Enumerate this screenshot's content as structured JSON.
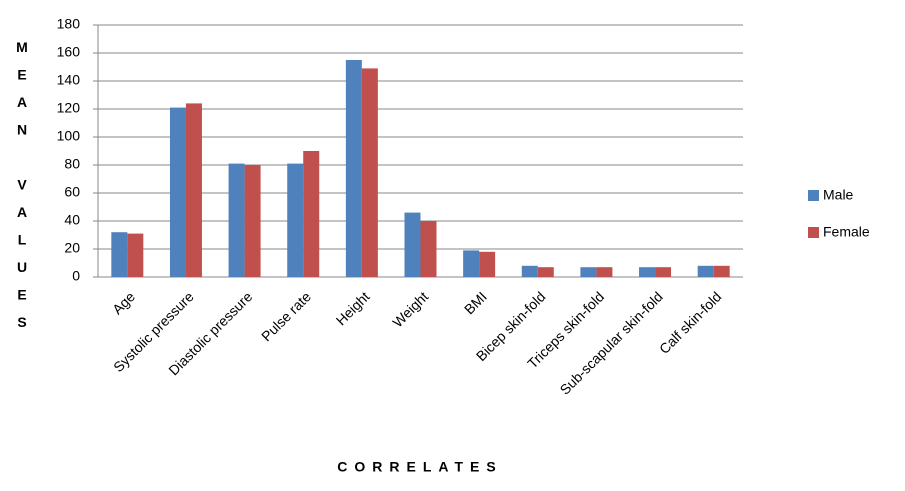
{
  "chart_data": {
    "type": "bar",
    "y_axis_label": "MEAN VALUES",
    "x_axis_label": "CORRELATES",
    "categories": [
      "Age",
      "Systolic pressure",
      "Diastolic pressure",
      "Pulse rate",
      "Height",
      "Weight",
      "BMI",
      "Bicep skin-fold",
      "Triceps skin-fold",
      "Sub-scapular skin-fold",
      "Calf skin-fold"
    ],
    "series": [
      {
        "name": "Male",
        "color": "#4f81bd",
        "values": [
          32,
          121,
          81,
          81,
          155,
          46,
          19,
          8,
          7,
          7,
          8
        ]
      },
      {
        "name": "Female",
        "color": "#c0504d",
        "values": [
          31,
          124,
          80,
          90,
          149,
          40,
          18,
          7,
          7,
          7,
          8
        ]
      }
    ],
    "ylim": [
      0,
      180
    ],
    "yticks": [
      0,
      20,
      40,
      60,
      80,
      100,
      120,
      140,
      160,
      180
    ],
    "grid": true,
    "legend": "right"
  }
}
